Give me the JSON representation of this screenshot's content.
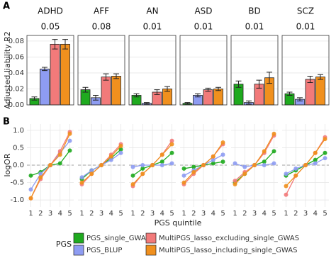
{
  "chart_data": [
    {
      "type": "bar",
      "panel_label": "A",
      "y_label": "Adjusted liability R2",
      "ylim": [
        0,
        0.087
      ],
      "yticks": [
        {
          "value": 0,
          "label": "0.00"
        },
        0.02,
        0.04,
        0.06,
        0.08
      ],
      "grid": true,
      "facets": [
        {
          "title": "ADHD",
          "annotation": 0.05,
          "values": [
            0.008,
            0.045,
            0.076,
            0.076
          ],
          "errors": [
            0.002,
            0.002,
            0.006,
            0.006
          ]
        },
        {
          "title": "AFF",
          "annotation": 0.08,
          "values": [
            0.019,
            0.009,
            0.035,
            0.036
          ],
          "errors": [
            0.003,
            0.003,
            0.004,
            0.003
          ]
        },
        {
          "title": "AN",
          "annotation": 0.01,
          "values": [
            0.012,
            0.002,
            0.016,
            0.02
          ],
          "errors": [
            0.002,
            0.001,
            0.003,
            0.003
          ]
        },
        {
          "title": "ASD",
          "annotation": 0.01,
          "values": [
            0.002,
            0.012,
            0.019,
            0.02
          ],
          "errors": [
            0.001,
            0.002,
            0.002,
            0.002
          ]
        },
        {
          "title": "BD",
          "annotation": 0.01,
          "values": [
            0.026,
            0.003,
            0.026,
            0.034
          ],
          "errors": [
            0.004,
            0.002,
            0.005,
            0.007
          ]
        },
        {
          "title": "SCZ",
          "annotation": 0.01,
          "values": [
            0.014,
            0.007,
            0.032,
            0.035
          ],
          "errors": [
            0.002,
            0.002,
            0.004,
            0.003
          ]
        }
      ]
    },
    {
      "type": "line",
      "panel_label": "B",
      "y_label": "logOR",
      "x_label": "PGS quintile",
      "x": [
        1,
        2,
        3,
        4,
        5
      ],
      "xlim": [
        0.6,
        5.4
      ],
      "xticks": [
        1,
        2,
        3,
        4,
        5
      ],
      "ylim": [
        -1.2,
        1.18
      ],
      "yticks": [
        {
          "value": -1,
          "label": "-1.0"
        },
        -0.5,
        {
          "value": 0,
          "label": "0.0"
        },
        0.5,
        {
          "value": 1,
          "label": "1.0"
        }
      ],
      "grid": true,
      "reference_line": 0,
      "facets": [
        {
          "series": [
            [
              -0.3,
              -0.2,
              0,
              0.05,
              0.42
            ],
            [
              -0.7,
              -0.25,
              0,
              0.35,
              0.7
            ],
            [
              -0.95,
              -0.4,
              0,
              0.4,
              0.95
            ],
            [
              -0.95,
              -0.35,
              0,
              0.3,
              0.9
            ]
          ]
        },
        {
          "series": [
            [
              -0.4,
              -0.15,
              0,
              0.2,
              0.45
            ],
            [
              -0.35,
              -0.15,
              0,
              0.15,
              0.35
            ],
            [
              -0.55,
              -0.25,
              0,
              0.3,
              0.6
            ],
            [
              -0.5,
              -0.25,
              0,
              0.25,
              0.55
            ]
          ]
        },
        {
          "series": [
            [
              -0.3,
              -0.1,
              0,
              0.1,
              0.35
            ],
            [
              -0.05,
              0,
              0,
              0,
              0.05
            ],
            [
              -0.6,
              -0.25,
              0,
              0.3,
              0.7
            ],
            [
              -0.55,
              -0.25,
              0,
              0.3,
              0.6
            ]
          ]
        },
        {
          "series": [
            [
              -0.1,
              -0.05,
              0,
              0.05,
              0.1
            ],
            [
              -0.3,
              -0.15,
              0,
              0.15,
              0.3
            ],
            [
              -0.55,
              -0.25,
              0,
              0.25,
              0.6
            ],
            [
              -0.5,
              -0.2,
              0,
              0.25,
              0.65
            ]
          ]
        },
        {
          "series": [
            [
              -0.5,
              -0.25,
              0,
              0.1,
              0.4
            ],
            [
              0.05,
              -0.05,
              0,
              0,
              0.05
            ],
            [
              -0.45,
              -0.2,
              0,
              0.35,
              0.85
            ],
            [
              -0.55,
              -0.25,
              0,
              0.4,
              0.9
            ]
          ]
        },
        {
          "series": [
            [
              -0.3,
              -0.15,
              0,
              0.15,
              0.35
            ],
            [
              -0.25,
              -0.1,
              0,
              0.05,
              0.2
            ],
            [
              -0.85,
              -0.3,
              0,
              0.35,
              0.8
            ],
            [
              -0.6,
              -0.3,
              0,
              0.35,
              0.75
            ]
          ]
        }
      ]
    }
  ],
  "legend": {
    "title": "PGS",
    "position": "bottom",
    "entries": [
      {
        "name": "PGS_single_GWAS",
        "color": "#1faa1f"
      },
      {
        "name": "PGS_BLUP",
        "color": "#8e9cf2"
      },
      {
        "name": "MultiPGS_lasso_excluding_single_GWAS",
        "color": "#f27a7a"
      },
      {
        "name": "MultiPGS_lasso_including_single_GWAS",
        "color": "#f0901e"
      }
    ]
  }
}
